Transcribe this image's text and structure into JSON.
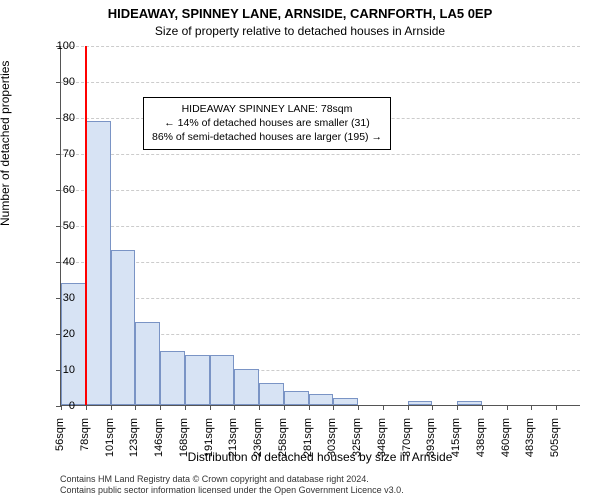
{
  "titles": {
    "main": "HIDEAWAY, SPINNEY LANE, ARNSIDE, CARNFORTH, LA5 0EP",
    "sub": "Size of property relative to detached houses in Arnside"
  },
  "ylabel": "Number of detached properties",
  "xlabel": "Distribution of detached houses by size in Arnside",
  "footer": {
    "line1": "Contains HM Land Registry data © Crown copyright and database right 2024.",
    "line2": "Contains public sector information licensed under the Open Government Licence v3.0."
  },
  "chart": {
    "type": "bar-histogram",
    "ylim": [
      0,
      100
    ],
    "ytick_step": 10,
    "grid_color": "#cccccc",
    "axis_color": "#555555",
    "background_color": "#ffffff",
    "bar_fill": "#d7e3f4",
    "bar_border": "#7a94c5",
    "marker_color": "#ff0000",
    "marker_value": 78,
    "x_start": 56,
    "x_step": 22.5,
    "bars": [
      34,
      79,
      43,
      23,
      15,
      14,
      14,
      10,
      6,
      4,
      3,
      2,
      0,
      0,
      1,
      0,
      1,
      0,
      0,
      0,
      0
    ],
    "x_tick_labels": [
      "56sqm",
      "78sqm",
      "101sqm",
      "123sqm",
      "146sqm",
      "168sqm",
      "191sqm",
      "213sqm",
      "236sqm",
      "258sqm",
      "281sqm",
      "303sqm",
      "325sqm",
      "348sqm",
      "370sqm",
      "393sqm",
      "415sqm",
      "438sqm",
      "460sqm",
      "483sqm",
      "505sqm"
    ],
    "databox": {
      "line1": "HIDEAWAY SPINNEY LANE: 78sqm",
      "line2": "← 14% of detached houses are smaller (31)",
      "line3": "86% of semi-detached houses are larger (195) →"
    }
  }
}
